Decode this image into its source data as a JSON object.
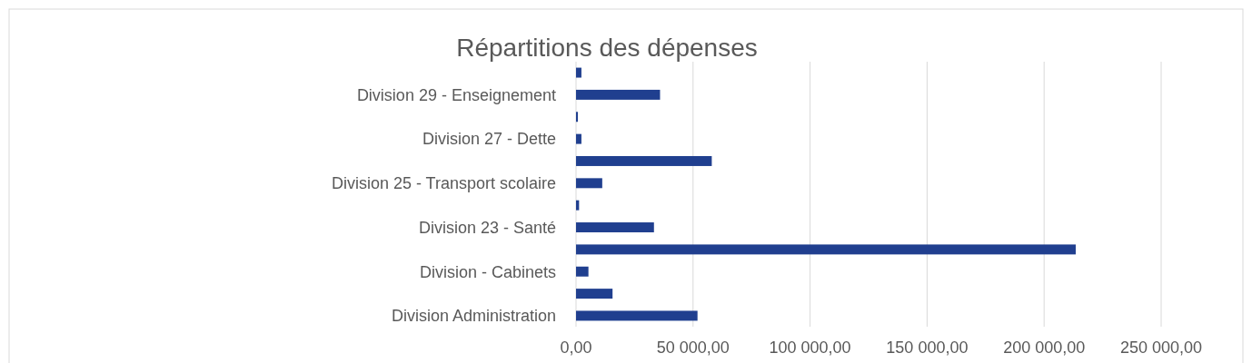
{
  "chart_data": {
    "type": "bar",
    "orientation": "horizontal",
    "title": "Répartitions des dépenses",
    "categories": [
      null,
      "Division 29 - Enseignement",
      null,
      "Division 27 - Dette",
      null,
      "Division 25 - Transport scolaire",
      null,
      "Division 23 - Santé",
      null,
      "Division - Cabinets",
      null,
      "Division  Administration"
    ],
    "values": [
      2300,
      35900,
      800,
      2300,
      58000,
      11200,
      1300,
      33300,
      213500,
      5300,
      15600,
      51900
    ],
    "color": "#203f8f",
    "xlim": [
      0,
      250000
    ],
    "xticks": [
      {
        "value": 0,
        "label": "0,00"
      },
      {
        "value": 50000,
        "label": "50 000,00"
      },
      {
        "value": 100000,
        "label": "100 000,00"
      },
      {
        "value": 150000,
        "label": "150 000,00"
      },
      {
        "value": 200000,
        "label": "200 000,00"
      },
      {
        "value": 250000,
        "label": "250 000,00"
      }
    ],
    "grid": "x"
  }
}
